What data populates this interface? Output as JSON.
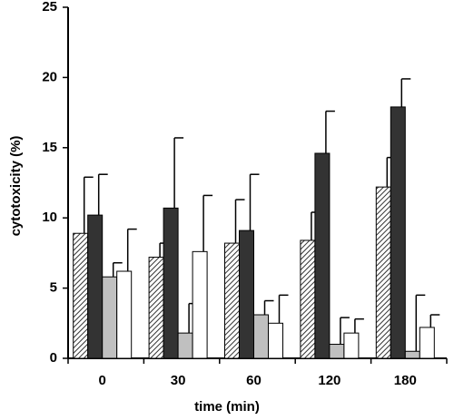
{
  "chart_data": {
    "type": "bar",
    "x_label": "time (min)",
    "y_label": "cytotoxicity (%)",
    "categories": [
      "0",
      "30",
      "60",
      "120",
      "180"
    ],
    "series": [
      {
        "color": "#444444",
        "pattern": "diagonal",
        "values": [
          8.9,
          7.2,
          8.2,
          8.4,
          12.2
        ],
        "errors": [
          4.0,
          1.0,
          3.1,
          2.0,
          2.1
        ]
      },
      {
        "color": "#333333",
        "values": [
          10.2,
          10.7,
          9.1,
          14.6,
          17.9
        ],
        "errors": [
          2.9,
          5.0,
          4.0,
          3.0,
          2.0
        ]
      },
      {
        "color": "#c0c0c0",
        "values": [
          5.8,
          1.8,
          3.1,
          1.0,
          0.5
        ],
        "errors": [
          1.0,
          2.1,
          1.0,
          1.9,
          4.0
        ]
      },
      {
        "color": "#ffffff",
        "values": [
          6.2,
          7.6,
          2.5,
          1.8,
          2.2
        ],
        "errors": [
          3.0,
          4.0,
          2.0,
          1.0,
          0.9
        ]
      }
    ],
    "ylim": [
      0,
      25
    ],
    "yticks": [
      0,
      5,
      10,
      15,
      20,
      25
    ],
    "grid": false
  }
}
